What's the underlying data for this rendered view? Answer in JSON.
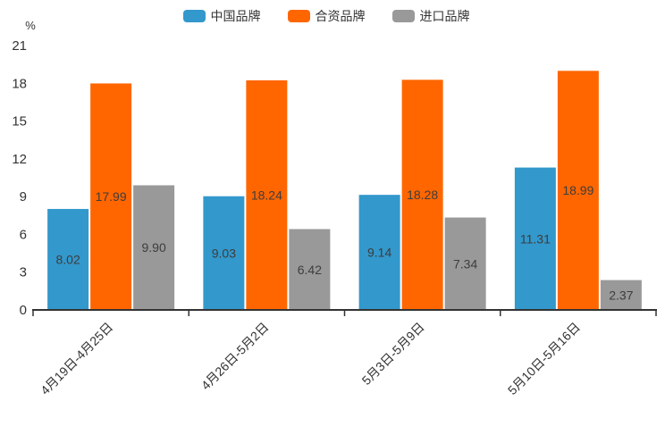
{
  "chart_data": {
    "type": "bar",
    "title": "",
    "xlabel": "",
    "ylabel": "%",
    "categories": [
      "4月19日-4月25日",
      "4月26日-5月2日",
      "5月3日-5月9日",
      "5月10日-5月16日"
    ],
    "series": [
      {
        "name": "中国品牌",
        "values": [
          8.02,
          9.03,
          9.14,
          11.31
        ],
        "labels": [
          "8.02",
          "9.03",
          "9.14",
          "11.31"
        ]
      },
      {
        "name": "合资品牌",
        "values": [
          17.99,
          18.24,
          18.28,
          18.99
        ],
        "labels": [
          "17.99",
          "18.24",
          "18.28",
          "18.99"
        ]
      },
      {
        "name": "进口品牌",
        "values": [
          9.9,
          6.42,
          7.34,
          2.37
        ],
        "labels": [
          "9.90",
          "6.42",
          "7.34",
          "2.37"
        ]
      }
    ],
    "colors": [
      "#3398cc",
      "#ff6600",
      "#999999"
    ],
    "ylim": [
      0,
      21
    ],
    "ytick_interval": 3,
    "ytick_labels": [
      "0",
      "3",
      "6",
      "9",
      "12",
      "15",
      "18",
      "21"
    ],
    "grid": false,
    "legend_position": "top",
    "x_label_rotation": 45,
    "bar_label_color": "#3d3d3d",
    "axis_color": "#333333",
    "tick_label_color": "#333333"
  }
}
